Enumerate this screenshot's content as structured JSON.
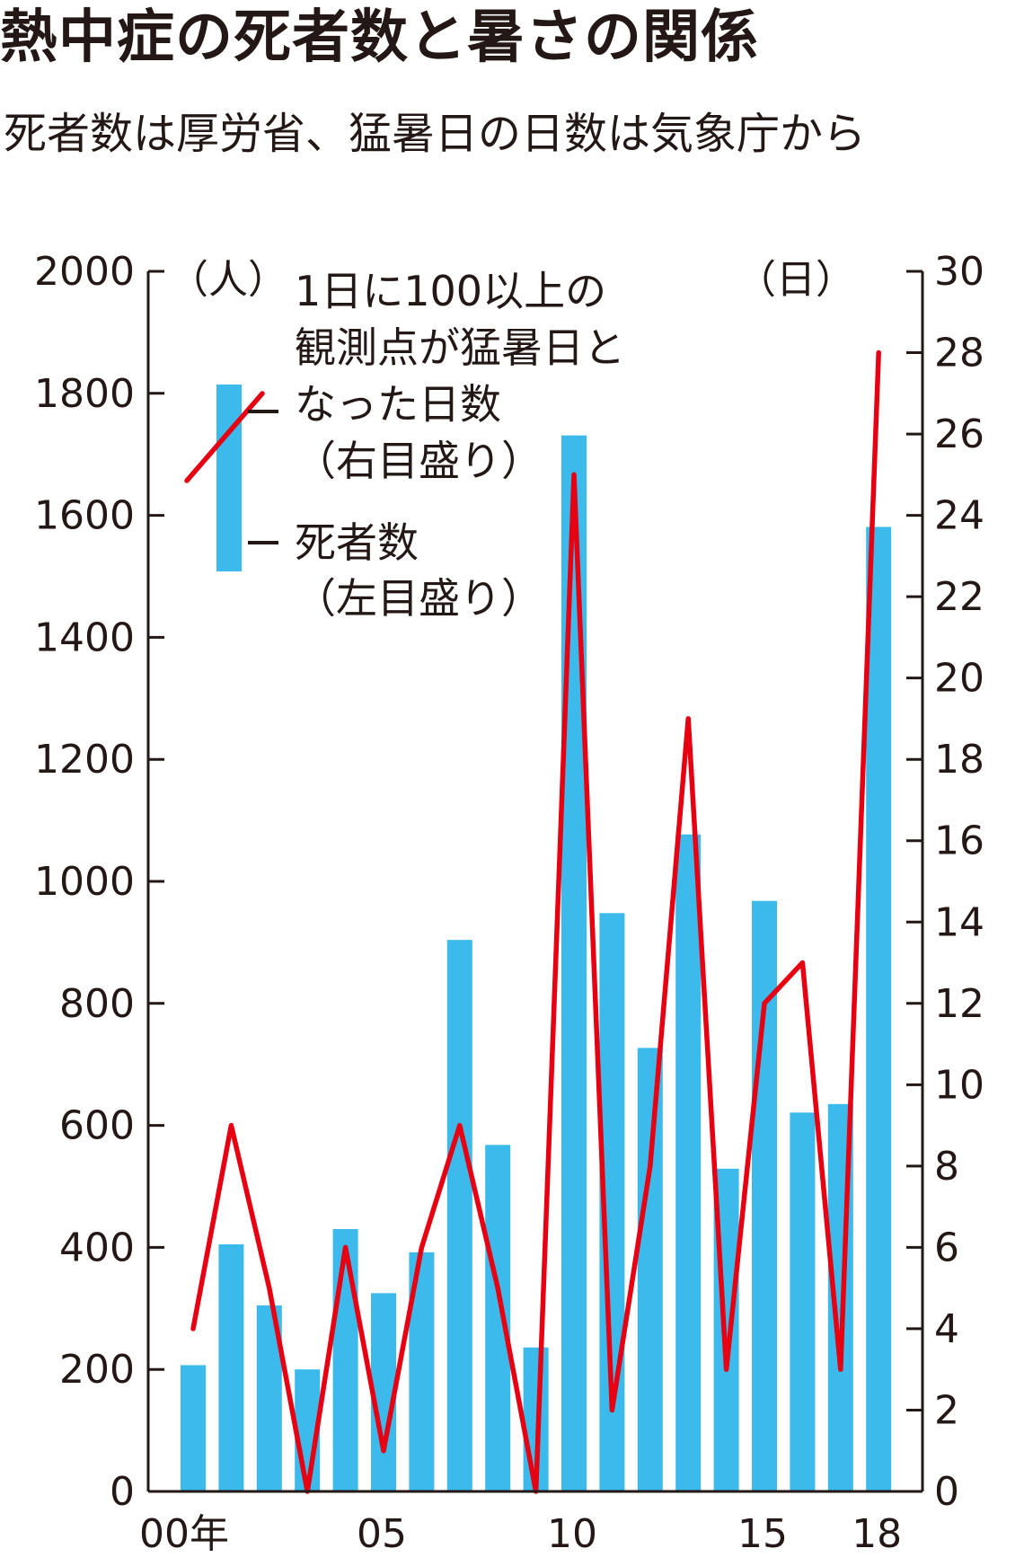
{
  "header": {
    "title": "熱中症の死者数と暑さの関係",
    "subtitle": "死者数は厚労省、猛暑日の日数は気象庁から"
  },
  "chart_data": {
    "type": "bar+line",
    "categories": [
      "00",
      "01",
      "02",
      "03",
      "04",
      "05",
      "06",
      "07",
      "08",
      "09",
      "10",
      "11",
      "12",
      "13",
      "14",
      "15",
      "16",
      "17",
      "18"
    ],
    "x_tick_labels": [
      {
        "category": "00",
        "label": "00年"
      },
      {
        "category": "05",
        "label": "05"
      },
      {
        "category": "10",
        "label": "10"
      },
      {
        "category": "15",
        "label": "15"
      },
      {
        "category": "18",
        "label": "18"
      }
    ],
    "y_left": {
      "unit_label": "（人）",
      "ylim": [
        0,
        2000
      ],
      "ticks": [
        0,
        200,
        400,
        600,
        800,
        1000,
        1200,
        1400,
        1600,
        1800,
        2000
      ]
    },
    "y_right": {
      "unit_label": "（日）",
      "ylim": [
        0,
        30
      ],
      "ticks": [
        0,
        2,
        4,
        6,
        8,
        10,
        12,
        14,
        16,
        18,
        20,
        22,
        24,
        26,
        28,
        30
      ]
    },
    "series": [
      {
        "name": "死者数（左目盛り）",
        "legend_lines": [
          "死者数",
          "（左目盛り）"
        ],
        "type": "bar",
        "axis": "left",
        "color": "#3bbaeb",
        "values": [
          207,
          405,
          305,
          200,
          430,
          325,
          392,
          904,
          568,
          236,
          1731,
          948,
          727,
          1077,
          529,
          968,
          621,
          635,
          1581
        ]
      },
      {
        "name": "1日に100以上の観測点が猛暑日となった日数（右目盛り）",
        "legend_lines": [
          "1日に100以上の",
          "観測点が猛暑日と",
          "なった日数",
          "（右目盛り）"
        ],
        "type": "line",
        "axis": "right",
        "color": "#e60012",
        "values": [
          4,
          9,
          5,
          0,
          6,
          1,
          6,
          9,
          5,
          0,
          25,
          2,
          8,
          19,
          3,
          12,
          13,
          3,
          28
        ]
      }
    ]
  }
}
